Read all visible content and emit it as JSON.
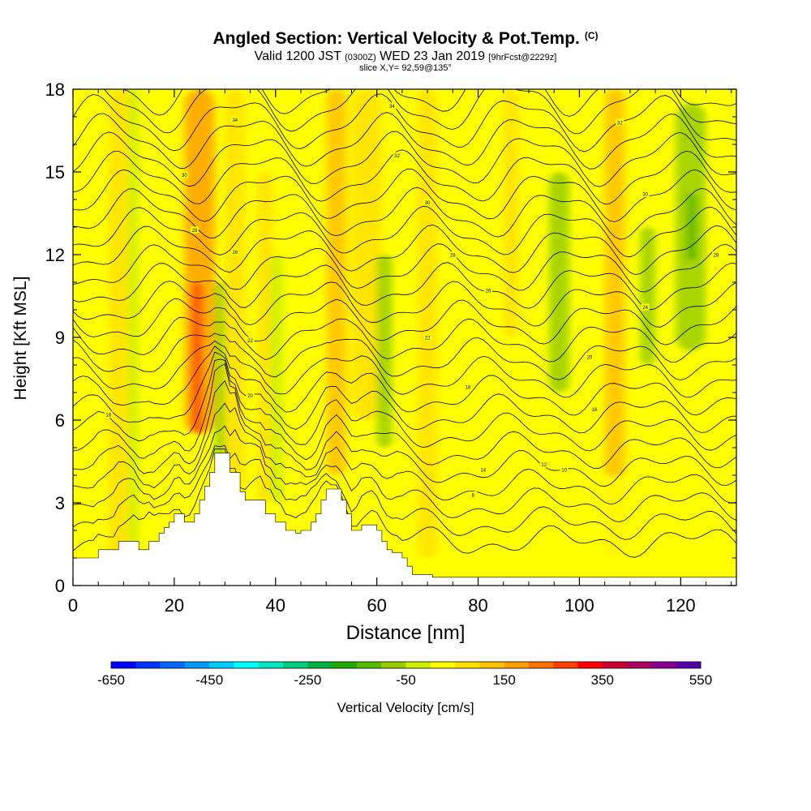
{
  "header": {
    "title": "Angled Section: Vertical Velocity & Pot.Temp.",
    "title_unit": "(C)",
    "subtitle_main": "Valid 1200 JST",
    "subtitle_z": "(0300Z)",
    "subtitle_date": "WED 23 Jan 2019",
    "subtitle_fcst": "[9hrFcst@2229z]",
    "slice": "slice X,Y= 92,59@135°"
  },
  "chart_data": {
    "type": "heatmap",
    "title": "Angled Section: Vertical Velocity & Pot.Temp.",
    "xlabel": "Distance [nm]",
    "ylabel": "Height [Kft MSL]",
    "xlim": [
      0,
      131
    ],
    "ylim": [
      0,
      18
    ],
    "x_ticks": [
      "0",
      "20",
      "40",
      "60",
      "80",
      "100",
      "120"
    ],
    "y_ticks": [
      "0",
      "3",
      "6",
      "9",
      "12",
      "15",
      "18"
    ],
    "colorbar": {
      "label": "Vertical Velocity [cm/s]",
      "tick_labels": [
        "-650",
        "-450",
        "-250",
        "-50",
        "150",
        "350",
        "550"
      ],
      "range": [
        -650,
        550
      ],
      "colors": [
        "#0000ff",
        "#0033ff",
        "#0066ff",
        "#0099ff",
        "#00ccff",
        "#00ffff",
        "#00e6bf",
        "#00cc80",
        "#00b340",
        "#22aa00",
        "#55bb00",
        "#99cc00",
        "#ccee00",
        "#ffff00",
        "#ffe000",
        "#ffc000",
        "#ffa000",
        "#ff7000",
        "#ff4000",
        "#ff0000",
        "#cc0030",
        "#aa0060",
        "#880090",
        "#5500aa"
      ]
    },
    "background_color": "#ffff00",
    "velocity_bands": [
      {
        "x": 9,
        "x0": 7,
        "x1": 11,
        "y0": 0.5,
        "y1": 18,
        "value": 60
      },
      {
        "x": 12,
        "x0": 11,
        "x1": 13,
        "y0": 1.5,
        "y1": 18,
        "value": -30
      },
      {
        "x": 25,
        "x0": 22,
        "x1": 28,
        "y0": 5.5,
        "y1": 18,
        "value": 150
      },
      {
        "x": 24.5,
        "x0": 23.5,
        "x1": 25.5,
        "y0": 5.5,
        "y1": 11,
        "value": 260
      },
      {
        "x": 29,
        "x0": 28,
        "x1": 30,
        "y0": 4.5,
        "y1": 11,
        "value": -100
      },
      {
        "x": 32,
        "x0": 30,
        "x1": 34,
        "y0": 3.5,
        "y1": 18,
        "value": 60
      },
      {
        "x": 38,
        "x0": 36.5,
        "x1": 39.5,
        "y0": 3,
        "y1": 15,
        "value": 60
      },
      {
        "x": 40,
        "x0": 39,
        "x1": 41.5,
        "y0": 3,
        "y1": 12,
        "value": -50
      },
      {
        "x": 47,
        "x0": 45,
        "x1": 49,
        "y0": 3,
        "y1": 14,
        "value": 40
      },
      {
        "x": 52,
        "x0": 50,
        "x1": 54,
        "y0": 4,
        "y1": 18,
        "value": 110
      },
      {
        "x": 58,
        "x0": 55,
        "x1": 61,
        "y0": 6,
        "y1": 18,
        "value": 70
      },
      {
        "x": 61.5,
        "x0": 60,
        "x1": 63,
        "y0": 5,
        "y1": 12,
        "value": -70
      },
      {
        "x": 70,
        "x0": 68,
        "x1": 72,
        "y0": 1,
        "y1": 18,
        "value": 50
      },
      {
        "x": 86,
        "x0": 85,
        "x1": 88,
        "y0": 9,
        "y1": 18,
        "value": 70
      },
      {
        "x": 96,
        "x0": 94,
        "x1": 98,
        "y0": 7,
        "y1": 15,
        "value": -80
      },
      {
        "x": 107,
        "x0": 105,
        "x1": 109,
        "y0": 1,
        "y1": 18,
        "value": 110
      },
      {
        "x": 113,
        "x0": 112,
        "x1": 115,
        "y0": 8,
        "y1": 13,
        "value": -60
      },
      {
        "x": 122,
        "x0": 119,
        "x1": 125,
        "y0": 8.5,
        "y1": 17.5,
        "value": -90
      },
      {
        "x": 122,
        "x0": 121.5,
        "x1": 122.8,
        "y0": 11.8,
        "y1": 14.2,
        "value": -170
      },
      {
        "x": 128,
        "x0": 126,
        "x1": 130,
        "y0": 1,
        "y1": 18,
        "value": 40
      },
      {
        "x": 100,
        "x0": 76,
        "x1": 131,
        "y0": 0.3,
        "y1": 4,
        "value": 40
      }
    ],
    "terrain": {
      "x": [
        0,
        5,
        5,
        9,
        9,
        13,
        13,
        15,
        15,
        17,
        17,
        18,
        18,
        19,
        19,
        20,
        20,
        22,
        22,
        24,
        24,
        25,
        25,
        26,
        26,
        27,
        27,
        28,
        28,
        31,
        31,
        33,
        33,
        34,
        34,
        38,
        38,
        40,
        40,
        42,
        42,
        44,
        44,
        45,
        45,
        47,
        47,
        48,
        48,
        49,
        49,
        50,
        50,
        53,
        53,
        54,
        54,
        55,
        55,
        57,
        57,
        60,
        60,
        61,
        61,
        62,
        62,
        63,
        63,
        65,
        65,
        66,
        66,
        67,
        67,
        71,
        71,
        131
      ],
      "y": [
        1,
        1,
        1.3,
        1.3,
        1.6,
        1.6,
        1.3,
        1.3,
        1.6,
        1.6,
        1.9,
        1.9,
        2.1,
        2.1,
        2.3,
        2.3,
        2.6,
        2.6,
        2.3,
        2.3,
        2.6,
        2.6,
        3.1,
        3.1,
        3.6,
        3.6,
        4.1,
        4.1,
        4.8,
        4.8,
        4.1,
        4.1,
        3.4,
        3.4,
        3.1,
        3.1,
        2.6,
        2.6,
        2.3,
        2.3,
        2.0,
        2.0,
        1.9,
        1.9,
        2.0,
        2.0,
        2.3,
        2.3,
        2.6,
        2.6,
        3.1,
        3.1,
        3.5,
        3.5,
        3.1,
        3.1,
        2.6,
        2.6,
        2.0,
        2.0,
        2.2,
        2.2,
        2.0,
        2.0,
        1.6,
        1.6,
        1.3,
        1.3,
        1.2,
        1.2,
        1.0,
        1.0,
        0.7,
        0.7,
        0.4,
        0.4,
        0.3,
        0.3
      ]
    },
    "isentrope_labels": [
      {
        "text": "34",
        "x": 63,
        "y": 17.4
      },
      {
        "text": "34",
        "x": 32,
        "y": 16.9
      },
      {
        "text": "32",
        "x": 108,
        "y": 16.8
      },
      {
        "text": "32",
        "x": 64,
        "y": 15.6
      },
      {
        "text": "30",
        "x": 22,
        "y": 14.9
      },
      {
        "text": "30",
        "x": 113,
        "y": 14.2
      },
      {
        "text": "30",
        "x": 70,
        "y": 13.9
      },
      {
        "text": "28",
        "x": 24,
        "y": 12.9
      },
      {
        "text": "28",
        "x": 127,
        "y": 12.0
      },
      {
        "text": "28",
        "x": 75,
        "y": 12.0
      },
      {
        "text": "26",
        "x": 32,
        "y": 12.1
      },
      {
        "text": "26",
        "x": 82,
        "y": 10.7
      },
      {
        "text": "24",
        "x": 113,
        "y": 10.1
      },
      {
        "text": "22",
        "x": 35,
        "y": 8.9
      },
      {
        "text": "22",
        "x": 70,
        "y": 9.0
      },
      {
        "text": "20",
        "x": 102,
        "y": 8.3
      },
      {
        "text": "20",
        "x": 35,
        "y": 6.9
      },
      {
        "text": "18",
        "x": 78,
        "y": 7.2
      },
      {
        "text": "18",
        "x": 7,
        "y": 6.2
      },
      {
        "text": "16",
        "x": 103,
        "y": 6.4
      },
      {
        "text": "14",
        "x": 81,
        "y": 4.2
      },
      {
        "text": "12",
        "x": 93,
        "y": 4.4
      },
      {
        "text": "10",
        "x": 97,
        "y": 4.2
      },
      {
        "text": "8",
        "x": 79,
        "y": 3.3
      }
    ]
  }
}
